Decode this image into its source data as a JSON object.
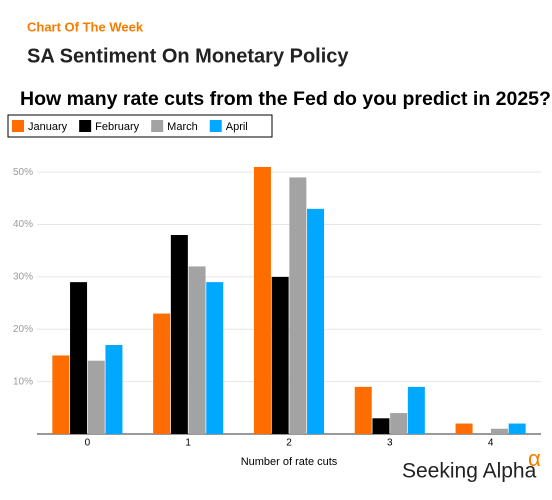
{
  "chart_data": {
    "type": "bar",
    "kicker": "Chart Of The Week",
    "title": "SA Sentiment On Monetary Policy",
    "subtitle": "How many rate cuts from the Fed do you predict in 2025?",
    "x_label": "Number of rate cuts",
    "categories": [
      "0",
      "1",
      "2",
      "3",
      "4"
    ],
    "series": [
      {
        "name": "January",
        "color": "#ff6d00",
        "values": [
          15,
          23,
          51,
          9,
          2
        ]
      },
      {
        "name": "February",
        "color": "#000000",
        "values": [
          29,
          38,
          30,
          3,
          0
        ]
      },
      {
        "name": "March",
        "color": "#a3a3a3",
        "values": [
          14,
          32,
          49,
          4,
          1
        ]
      },
      {
        "name": "April",
        "color": "#00a8ff",
        "values": [
          17,
          29,
          43,
          9,
          2
        ]
      }
    ],
    "ylim": [
      0,
      55
    ],
    "yticks": [
      {
        "value": 10,
        "label": "10%"
      },
      {
        "value": 20,
        "label": "20%"
      },
      {
        "value": 30,
        "label": "30%"
      },
      {
        "value": 40,
        "label": "40%"
      },
      {
        "value": 50,
        "label": "50%"
      }
    ],
    "grid": true,
    "legend": "top-left",
    "logo": {
      "text": "Seeking Alpha",
      "symbol": "α"
    }
  }
}
